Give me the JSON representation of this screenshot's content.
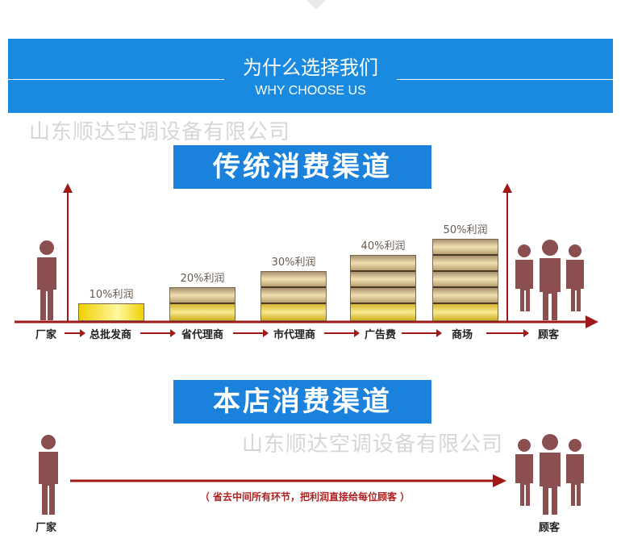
{
  "header": {
    "title": "为什么选择我们",
    "subtitle": "WHY CHOOSE US"
  },
  "watermark": "山东顺达空调设备有限公司",
  "traditional": {
    "title": "传统消费渠道",
    "steps": [
      "厂家",
      "总批发商",
      "省代理商",
      "市代理商",
      "广告费",
      "商场",
      "顾客"
    ],
    "bars": [
      {
        "label": "10%利润",
        "profit_percent": 10
      },
      {
        "label": "20%利润",
        "profit_percent": 20
      },
      {
        "label": "30%利润",
        "profit_percent": 30
      },
      {
        "label": "40%利润",
        "profit_percent": 40
      },
      {
        "label": "50%利润",
        "profit_percent": 50
      }
    ]
  },
  "direct": {
    "title": "本店消费渠道",
    "note": "（ 省去中间所有环节，把利润直接给每位顾客 ）",
    "from": "厂家",
    "to": "顾客"
  },
  "colors": {
    "blue": "#1a8ae0",
    "person": "#8b4f4f",
    "arrow": "#a01818"
  }
}
